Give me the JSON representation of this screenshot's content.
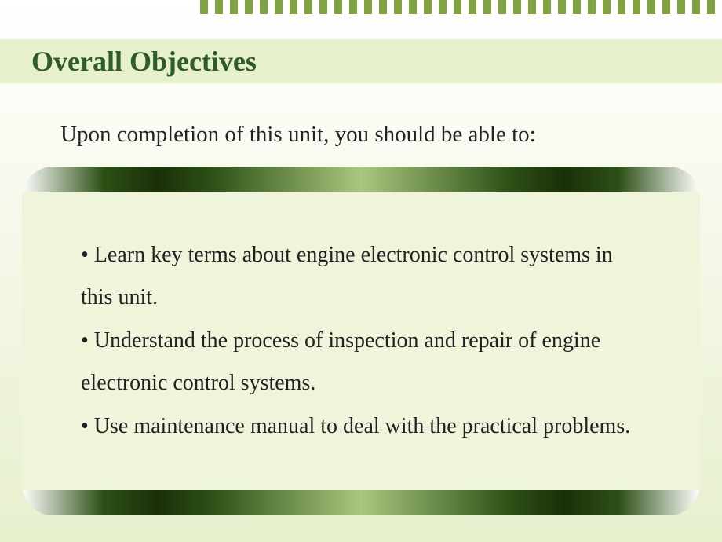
{
  "styling": {
    "background_gradient": {
      "from": "#ffffff",
      "to": "#e7f0cd",
      "direction": "to bottom"
    },
    "title_band_color": "#e7f0cd",
    "title_text_color": "#2e5a2e",
    "dash_color": "#80a240",
    "dash_count": 35,
    "content_box_fill": "#eef5db",
    "content_box_border_radius": 40,
    "box_edge_gradient_colors": [
      "#ffffff",
      "#2d5016",
      "#1a3009",
      "#a9c77e"
    ],
    "body_text_color": "#222222",
    "title_fontsize": 36,
    "intro_fontsize": 29,
    "bullet_fontsize": 28,
    "font_family": "Times New Roman"
  },
  "title": "Overall Objectives",
  "intro": "Upon completion of this unit, you should be able to:",
  "bullets": [
    "• Learn key terms about engine electronic control systems in this unit.",
    "• Understand the process of inspection and repair of engine electronic control systems.",
    "• Use maintenance manual to deal with the practical problems."
  ]
}
